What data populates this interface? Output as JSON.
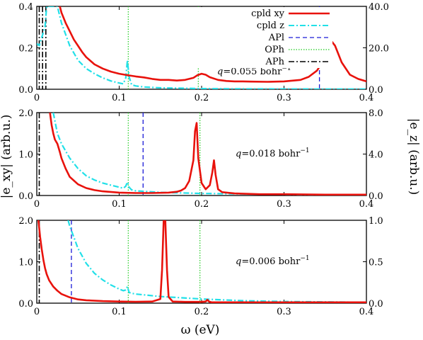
{
  "figure": {
    "xlabel": "ω (eV)",
    "ylabel_left": "|e_xy| (arb.u.)",
    "ylabel_right": "|e_z| (arb.u.)",
    "colors": {
      "cpld_xy": "#e8120c",
      "cpld_z": "#22e0e8",
      "APl": "#1a1ad8",
      "OPh": "#22cc22",
      "APh": "#000000"
    },
    "legend": {
      "placement": "top-right of top panel",
      "entries": [
        {
          "label": "cpld xy",
          "style": "solid",
          "color_key": "cpld_xy"
        },
        {
          "label": "cpld z",
          "style": "dashdot",
          "color_key": "cpld_z"
        },
        {
          "label": "APl",
          "style": "dashed",
          "color_key": "APl"
        },
        {
          "label": "OPh",
          "style": "dotted",
          "color_key": "OPh"
        },
        {
          "label": "APh",
          "style": "dashdot",
          "color_key": "APh"
        }
      ]
    }
  },
  "chart_data": [
    {
      "type": "line",
      "panel": "top",
      "annotation_pre": "q",
      "annotation_post": "=0.055 bohr",
      "annotation_sup": "−1",
      "xlim": [
        0,
        0.4
      ],
      "ylim": [
        0,
        0.4
      ],
      "y2lim": [
        0,
        40.0
      ],
      "xticks": [
        "0",
        "0.1",
        "0.2",
        "0.3",
        "0.4"
      ],
      "yticks": [
        "0.0",
        "0.2",
        "0.4"
      ],
      "y2ticks": [
        "0.0",
        "20.0",
        "40.0"
      ],
      "series": [
        {
          "name": "cpld xy",
          "axis": "left",
          "x": [
            0.028,
            0.03,
            0.035,
            0.04,
            0.045,
            0.05,
            0.055,
            0.06,
            0.07,
            0.08,
            0.09,
            0.1,
            0.11,
            0.12,
            0.13,
            0.14,
            0.15,
            0.16,
            0.17,
            0.18,
            0.19,
            0.195,
            0.2,
            0.205,
            0.21,
            0.22,
            0.23,
            0.24,
            0.25,
            0.26,
            0.28,
            0.3,
            0.32,
            0.33,
            0.34,
            0.345,
            0.35,
            0.355,
            0.358,
            0.362,
            0.37,
            0.38,
            0.39,
            0.4
          ],
          "y": [
            0.4,
            0.37,
            0.32,
            0.28,
            0.24,
            0.21,
            0.18,
            0.155,
            0.12,
            0.1,
            0.085,
            0.075,
            0.068,
            0.062,
            0.057,
            0.05,
            0.045,
            0.045,
            0.042,
            0.045,
            0.055,
            0.068,
            0.075,
            0.07,
            0.058,
            0.045,
            0.04,
            0.038,
            0.038,
            0.037,
            0.036,
            0.038,
            0.045,
            0.06,
            0.09,
            0.12,
            0.17,
            0.21,
            0.23,
            0.21,
            0.13,
            0.07,
            0.05,
            0.038
          ]
        },
        {
          "name": "cpld z",
          "axis": "right",
          "x": [
            0.0,
            0.003,
            0.006,
            0.01,
            0.012,
            0.015,
            0.02,
            0.025,
            0.03,
            0.04,
            0.05,
            0.06,
            0.07,
            0.08,
            0.09,
            0.1,
            0.105,
            0.108,
            0.11,
            0.112,
            0.115,
            0.12,
            0.13,
            0.15,
            0.2,
            0.25,
            0.3,
            0.35,
            0.4
          ],
          "y": [
            22.0,
            21.0,
            25.0,
            30.0,
            40.0,
            40.0,
            40.0,
            40.0,
            32.0,
            21.0,
            14.0,
            10.0,
            7.5,
            5.5,
            4.0,
            3.0,
            2.6,
            5.5,
            14.0,
            6.0,
            2.2,
            1.6,
            1.1,
            0.7,
            0.3,
            0.2,
            0.15,
            0.1,
            0.1
          ]
        }
      ],
      "vlines": [
        {
          "name": "APl",
          "x": 0.343
        },
        {
          "name": "OPh",
          "x": 0.111
        },
        {
          "name": "OPh",
          "x": 0.196
        },
        {
          "name": "APh",
          "x": 0.003
        },
        {
          "name": "APh",
          "x": 0.007
        },
        {
          "name": "APh",
          "x": 0.011
        }
      ]
    },
    {
      "type": "line",
      "panel": "middle",
      "annotation_pre": "q",
      "annotation_post": "=0.018 bohr",
      "annotation_sup": "−1",
      "xlim": [
        0,
        0.4
      ],
      "ylim": [
        0,
        2.0
      ],
      "y2lim": [
        0,
        8.0
      ],
      "xticks": [
        "0",
        "0.1",
        "0.2",
        "0.3",
        "0.4"
      ],
      "yticks": [
        "0.0",
        "1.0",
        "2.0"
      ],
      "y2ticks": [
        "0.0",
        "4.0",
        "8.0"
      ],
      "series": [
        {
          "name": "cpld xy",
          "axis": "left",
          "x": [
            0.016,
            0.018,
            0.02,
            0.022,
            0.025,
            0.028,
            0.03,
            0.035,
            0.04,
            0.05,
            0.06,
            0.07,
            0.08,
            0.1,
            0.12,
            0.14,
            0.16,
            0.17,
            0.175,
            0.18,
            0.185,
            0.19,
            0.192,
            0.194,
            0.196,
            0.2,
            0.205,
            0.21,
            0.213,
            0.215,
            0.217,
            0.22,
            0.225,
            0.24,
            0.27,
            0.3,
            0.35,
            0.4
          ],
          "y": [
            2.0,
            1.7,
            1.5,
            1.35,
            1.25,
            1.05,
            0.9,
            0.65,
            0.45,
            0.27,
            0.18,
            0.13,
            0.1,
            0.07,
            0.06,
            0.06,
            0.07,
            0.09,
            0.12,
            0.18,
            0.35,
            0.85,
            1.55,
            1.75,
            0.9,
            0.3,
            0.15,
            0.25,
            0.55,
            0.85,
            0.5,
            0.15,
            0.08,
            0.05,
            0.03,
            0.03,
            0.02,
            0.02
          ]
        },
        {
          "name": "cpld z",
          "axis": "right",
          "x": [
            0.02,
            0.025,
            0.03,
            0.04,
            0.05,
            0.06,
            0.07,
            0.08,
            0.09,
            0.1,
            0.105,
            0.108,
            0.11,
            0.112,
            0.115,
            0.12,
            0.15,
            0.2,
            0.25,
            0.3,
            0.35,
            0.4
          ],
          "y": [
            8.0,
            6.0,
            5.0,
            3.6,
            2.6,
            1.9,
            1.5,
            1.2,
            1.0,
            0.8,
            0.7,
            0.9,
            1.3,
            0.8,
            0.55,
            0.45,
            0.3,
            0.2,
            0.15,
            0.1,
            0.08,
            0.06
          ]
        }
      ],
      "vlines": [
        {
          "name": "APl",
          "x": 0.129
        },
        {
          "name": "OPh",
          "x": 0.111
        },
        {
          "name": "OPh",
          "x": 0.198
        },
        {
          "name": "APh",
          "x": 0.003
        }
      ]
    },
    {
      "type": "line",
      "panel": "bottom",
      "annotation_pre": "q",
      "annotation_post": "=0.006 bohr",
      "annotation_sup": "−1",
      "xlim": [
        0,
        0.4
      ],
      "ylim": [
        0,
        2.0
      ],
      "y2lim": [
        0,
        1.0
      ],
      "xticks": [
        "0",
        "0.1",
        "0.2",
        "0.3",
        "0.4"
      ],
      "yticks": [
        "0.0",
        "1.0",
        "2.0"
      ],
      "y2ticks": [
        "0.0",
        "0.5",
        "1.0"
      ],
      "series": [
        {
          "name": "cpld xy",
          "axis": "left",
          "x": [
            0.002,
            0.004,
            0.006,
            0.008,
            0.01,
            0.012,
            0.015,
            0.02,
            0.025,
            0.03,
            0.04,
            0.05,
            0.06,
            0.08,
            0.1,
            0.12,
            0.14,
            0.15,
            0.152,
            0.154,
            0.156,
            0.158,
            0.16,
            0.165,
            0.18,
            0.2,
            0.205,
            0.207,
            0.209,
            0.212,
            0.22,
            0.25,
            0.3,
            0.35,
            0.4
          ],
          "y": [
            2.0,
            1.6,
            1.3,
            1.05,
            0.85,
            0.7,
            0.55,
            0.4,
            0.3,
            0.22,
            0.14,
            0.09,
            0.07,
            0.05,
            0.04,
            0.035,
            0.04,
            0.1,
            0.8,
            2.0,
            2.0,
            0.8,
            0.15,
            0.04,
            0.03,
            0.03,
            0.04,
            0.08,
            0.04,
            0.02,
            0.02,
            0.02,
            0.02,
            0.02,
            0.02
          ]
        },
        {
          "name": "cpld z",
          "axis": "right",
          "x": [
            0.038,
            0.04,
            0.05,
            0.06,
            0.07,
            0.08,
            0.09,
            0.1,
            0.105,
            0.108,
            0.11,
            0.112,
            0.115,
            0.12,
            0.15,
            0.2,
            0.25,
            0.3,
            0.35,
            0.4
          ],
          "y": [
            1.0,
            0.93,
            0.66,
            0.48,
            0.36,
            0.28,
            0.22,
            0.17,
            0.15,
            0.16,
            0.2,
            0.13,
            0.12,
            0.11,
            0.08,
            0.05,
            0.03,
            0.02,
            0.015,
            0.01
          ]
        }
      ],
      "vlines": [
        {
          "name": "APl",
          "x": 0.042
        },
        {
          "name": "OPh",
          "x": 0.111
        },
        {
          "name": "OPh",
          "x": 0.198
        },
        {
          "name": "APh",
          "x": 0.003
        }
      ]
    }
  ]
}
